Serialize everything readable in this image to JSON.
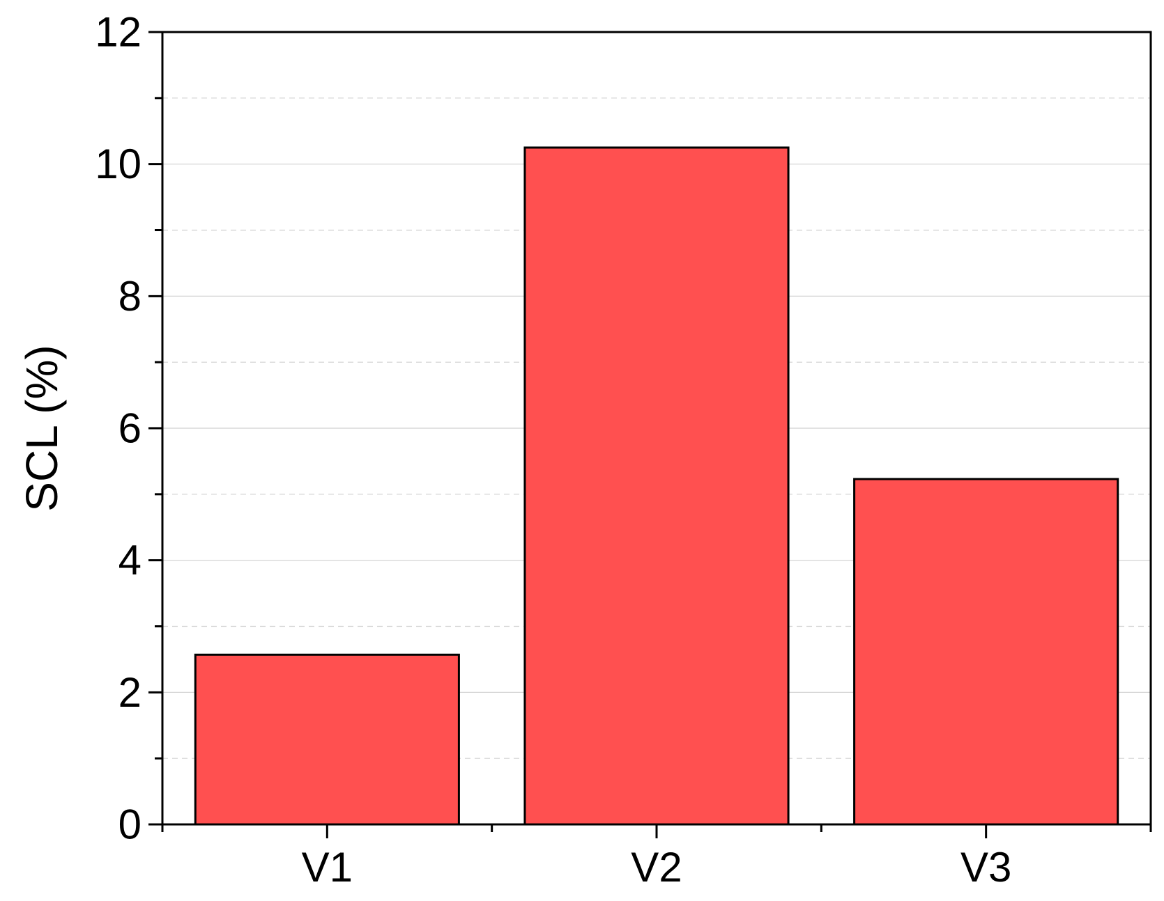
{
  "chart_data": {
    "type": "bar",
    "title": "",
    "xlabel": "",
    "ylabel": "SCL (%)",
    "categories": [
      "V1",
      "V2",
      "V3"
    ],
    "values": [
      2.57,
      10.25,
      5.23
    ],
    "ylim": [
      0,
      12
    ],
    "y_major_ticks": [
      0,
      2,
      4,
      6,
      8,
      10,
      12
    ],
    "y_minor_ticks": [
      1,
      3,
      5,
      7,
      9,
      11
    ],
    "y_tick_labels": [
      "0",
      "2",
      "4",
      "6",
      "8",
      "10",
      "12"
    ],
    "grid": {
      "major": "solid",
      "minor": "dashed",
      "color": "#d0d0d0"
    },
    "bar_color": "#ff5050",
    "bar_edge_color": "#000000",
    "frame": "full box"
  }
}
